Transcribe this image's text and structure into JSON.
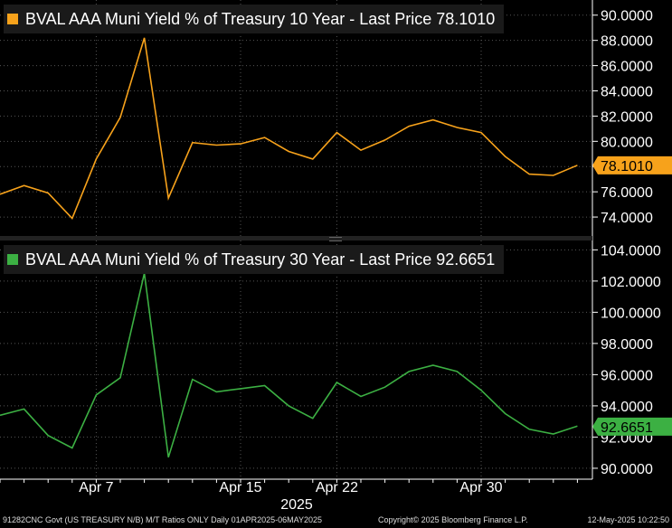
{
  "chart_data": [
    {
      "type": "line",
      "title": "BVAL AAA Muni Yield % of Treasury 10 Year - Last Price 78.1010",
      "last_price_label": "78.1010",
      "color": "#f7a21b",
      "ylim": [
        72.5,
        91.2
      ],
      "yticks": [
        "74.0000",
        "76.0000",
        "78.0000",
        "80.0000",
        "82.0000",
        "84.0000",
        "86.0000",
        "88.0000",
        "90.0000"
      ],
      "ytick_values": [
        74,
        76,
        78,
        80,
        82,
        84,
        86,
        88,
        90
      ],
      "x": [
        "2025-04-01",
        "2025-04-02",
        "2025-04-03",
        "2025-04-04",
        "2025-04-07",
        "2025-04-08",
        "2025-04-09",
        "2025-04-10",
        "2025-04-11",
        "2025-04-14",
        "2025-04-15",
        "2025-04-16",
        "2025-04-17",
        "2025-04-21",
        "2025-04-22",
        "2025-04-23",
        "2025-04-24",
        "2025-04-25",
        "2025-04-28",
        "2025-04-29",
        "2025-04-30",
        "2025-05-01",
        "2025-05-02",
        "2025-05-05",
        "2025-05-06"
      ],
      "values": [
        75.8,
        76.5,
        75.9,
        73.9,
        78.6,
        81.9,
        88.2,
        75.5,
        79.9,
        79.7,
        79.8,
        80.3,
        79.2,
        78.6,
        80.7,
        79.3,
        80.1,
        81.2,
        81.7,
        81.1,
        80.7,
        78.8,
        77.4,
        77.3,
        78.1
      ],
      "last_value": 78.101
    },
    {
      "type": "line",
      "title": "BVAL AAA Muni Yield % of Treasury 30 Year - Last Price 92.6651",
      "last_price_label": "92.6651",
      "color": "#3cb043",
      "ylim": [
        89.3,
        104.6
      ],
      "yticks": [
        "90.0000",
        "92.0000",
        "94.0000",
        "96.0000",
        "98.0000",
        "100.0000",
        "102.0000",
        "104.0000"
      ],
      "ytick_values": [
        90,
        92,
        94,
        96,
        98,
        100,
        102,
        104
      ],
      "x": [
        "2025-04-01",
        "2025-04-02",
        "2025-04-03",
        "2025-04-04",
        "2025-04-07",
        "2025-04-08",
        "2025-04-09",
        "2025-04-10",
        "2025-04-11",
        "2025-04-14",
        "2025-04-15",
        "2025-04-16",
        "2025-04-17",
        "2025-04-21",
        "2025-04-22",
        "2025-04-23",
        "2025-04-24",
        "2025-04-25",
        "2025-04-28",
        "2025-04-29",
        "2025-04-30",
        "2025-05-01",
        "2025-05-02",
        "2025-05-05",
        "2025-05-06"
      ],
      "values": [
        93.4,
        93.8,
        92.1,
        91.3,
        94.7,
        95.8,
        102.5,
        90.7,
        95.7,
        94.9,
        95.1,
        95.3,
        94.0,
        93.2,
        95.5,
        94.6,
        95.2,
        96.2,
        96.6,
        96.2,
        95.0,
        93.5,
        92.5,
        92.2,
        92.7
      ],
      "last_value": 92.6651
    }
  ],
  "x_axis": {
    "tick_labels": [
      "Apr 7",
      "Apr 15",
      "Apr 22",
      "Apr 30"
    ],
    "tick_indices": [
      4,
      10,
      14,
      20
    ],
    "year_label": "2025"
  },
  "footer": {
    "left": "91282CNC Govt (US TREASURY N/B) M/T Ratios ONLY  Daily 01APR2025-06MAY2025",
    "center": "Copyright© 2025 Bloomberg Finance L.P.",
    "right": "12-May-2025 10:22:50"
  }
}
